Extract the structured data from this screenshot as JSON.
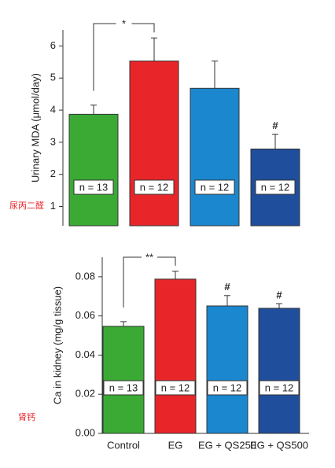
{
  "chart_data": [
    {
      "type": "bar",
      "y_label": "Urinary MDA (μmol/day)",
      "side_label": "尿丙二醛",
      "categories": [
        null,
        null,
        null,
        null
      ],
      "values": [
        3.87,
        5.53,
        4.68,
        2.79
      ],
      "errors": [
        0.29,
        0.72,
        0.85,
        0.46
      ],
      "colors": [
        "#3aaa35",
        "#e8262a",
        "#1a87cf",
        "#1f4e9c"
      ],
      "n_labels": [
        "n = 13",
        "n = 12",
        "n = 12",
        "n = 12"
      ],
      "bracket_label": "*",
      "markers": [
        null,
        null,
        null,
        "#"
      ],
      "ylim": [
        0.4,
        6.5
      ],
      "yticks": [
        1,
        2,
        3,
        4,
        5,
        6
      ]
    },
    {
      "type": "bar",
      "y_label": "Ca in kidney (mg/g tissue)",
      "side_label": "肾钙",
      "categories": [
        "Control",
        "EG",
        "EG + QS250",
        "EG + QS500"
      ],
      "values": [
        0.0547,
        0.0788,
        0.0651,
        0.0639
      ],
      "errors": [
        0.0024,
        0.004,
        0.0053,
        0.0024
      ],
      "colors": [
        "#3aaa35",
        "#e8262a",
        "#1a87cf",
        "#1f4e9c"
      ],
      "n_labels": [
        "n = 13",
        "n = 12",
        "n = 12",
        "n = 12"
      ],
      "bracket_label": "**",
      "markers": [
        null,
        null,
        "#",
        "#"
      ],
      "ylim": [
        0,
        0.09
      ],
      "yticks": [
        {
          "value": 0,
          "label": "0.00"
        },
        0.02,
        0.04,
        0.06,
        0.08
      ]
    }
  ]
}
